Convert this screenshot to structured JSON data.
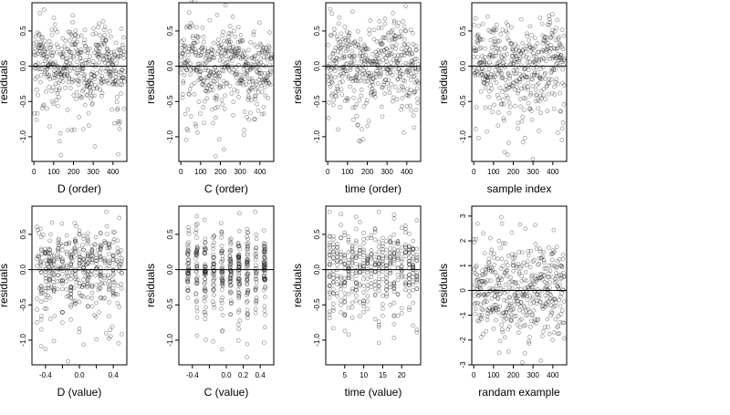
{
  "chart_data": [
    {
      "type": "scatter",
      "xlabel": "D (order)",
      "ylabel": "residuals",
      "xlim": [
        -10,
        470
      ],
      "ylim": [
        -1.35,
        0.9
      ],
      "xticks": [
        0,
        100,
        200,
        300,
        400
      ],
      "yticks": [
        -1.0,
        -0.5,
        0.0,
        0.5
      ],
      "xtick_labels": [
        "0",
        "100",
        "200",
        "300",
        "400"
      ],
      "ytick_labels": [
        "-1.0",
        "-0.5",
        "0.0",
        "0.5"
      ],
      "hline": 0,
      "n_points": 460
    },
    {
      "type": "scatter",
      "xlabel": "C (order)",
      "ylabel": "residuals",
      "xlim": [
        -10,
        470
      ],
      "ylim": [
        -1.35,
        0.9
      ],
      "xticks": [
        0,
        100,
        200,
        300,
        400
      ],
      "yticks": [
        -1.0,
        -0.5,
        0.0,
        0.5
      ],
      "xtick_labels": [
        "0",
        "100",
        "200",
        "300",
        "400"
      ],
      "ytick_labels": [
        "-1.0",
        "-0.5",
        "0.0",
        "0.5"
      ],
      "hline": 0,
      "n_points": 460
    },
    {
      "type": "scatter",
      "xlabel": "time (order)",
      "ylabel": "residuals",
      "xlim": [
        -10,
        470
      ],
      "ylim": [
        -1.35,
        0.9
      ],
      "xticks": [
        0,
        100,
        200,
        300,
        400
      ],
      "yticks": [
        -1.0,
        -0.5,
        0.0,
        0.5
      ],
      "xtick_labels": [
        "0",
        "100",
        "200",
        "300",
        "400"
      ],
      "ytick_labels": [
        "-1.0",
        "-0.5",
        "0.0",
        "0.5"
      ],
      "hline": 0,
      "n_points": 460
    },
    {
      "type": "scatter",
      "xlabel": "sample index",
      "ylabel": "residuals",
      "xlim": [
        -10,
        470
      ],
      "ylim": [
        -1.35,
        0.9
      ],
      "xticks": [
        0,
        100,
        200,
        300,
        400
      ],
      "yticks": [
        -1.0,
        -0.5,
        0.0,
        0.5
      ],
      "xtick_labels": [
        "0",
        "100",
        "200",
        "300",
        "400"
      ],
      "ytick_labels": [
        "-1.0",
        "-0.5",
        "0.0",
        "0.5"
      ],
      "hline": 0,
      "n_points": 460
    },
    {
      "type": "scatter",
      "xlabel": "D (value)",
      "ylabel": "residuals",
      "xlim": [
        -0.56,
        0.56
      ],
      "ylim": [
        -1.35,
        0.9
      ],
      "xticks": [
        -0.4,
        0.0,
        0.4
      ],
      "yticks": [
        -1.0,
        -0.5,
        0.0,
        0.5
      ],
      "xtick_labels": [
        "-0.4",
        "0.0",
        "0.4"
      ],
      "ytick_labels": [
        "-1.0",
        "-0.5",
        "0.0",
        "0.5"
      ],
      "minor_xticks": [
        -0.2,
        0.2
      ],
      "hline": 0,
      "n_points": 460
    },
    {
      "type": "scatter",
      "xlabel": "C (value)",
      "ylabel": "residuals",
      "xlim": [
        -0.56,
        0.56
      ],
      "ylim": [
        -1.35,
        0.9
      ],
      "xticks": [
        -0.4,
        0.0,
        0.2,
        0.4
      ],
      "yticks": [
        -1.0,
        -0.5,
        0.0,
        0.5
      ],
      "xtick_labels": [
        "-0.4",
        "0.0",
        "0.2",
        "0.4"
      ],
      "ytick_labels": [
        "-1.0",
        "-0.5",
        "0.0",
        "0.5"
      ],
      "minor_xticks": [
        -0.2
      ],
      "hline": 0,
      "n_points": 460
    },
    {
      "type": "scatter",
      "xlabel": "time (value)",
      "ylabel": "residuals",
      "xlim": [
        0,
        25
      ],
      "ylim": [
        -1.35,
        0.9
      ],
      "xticks": [
        5,
        10,
        15,
        20
      ],
      "yticks": [
        -1.0,
        -0.5,
        0.0,
        0.5
      ],
      "xtick_labels": [
        "5",
        "10",
        "15",
        "20"
      ],
      "ytick_labels": [
        "-1.0",
        "-0.5",
        "0.0",
        "0.5"
      ],
      "hline": 0,
      "n_points": 460
    },
    {
      "type": "scatter",
      "xlabel": "randam example",
      "ylabel": "residuals",
      "xlim": [
        -10,
        470
      ],
      "ylim": [
        -3.0,
        3.4
      ],
      "xticks": [
        0,
        100,
        200,
        300,
        400
      ],
      "yticks": [
        -3,
        -2,
        -1,
        0,
        1,
        2,
        3
      ],
      "xtick_labels": [
        "0",
        "100",
        "200",
        "300",
        "400"
      ],
      "ytick_labels": [
        "-3",
        "-2",
        "-1",
        "0",
        "1",
        "2",
        "3"
      ],
      "hline": 0,
      "n_points": 460
    }
  ],
  "colors": {
    "point": "#000000",
    "axis": "#000000",
    "background": "#ffffff"
  },
  "point_style": "open-circle"
}
